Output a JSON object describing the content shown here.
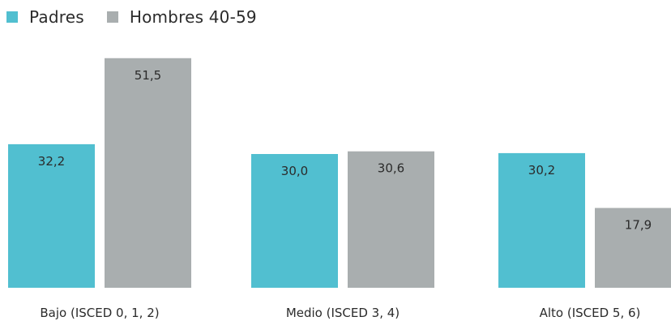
{
  "chart_data": {
    "type": "bar",
    "categories": [
      "Bajo (ISCED 0, 1, 2)",
      "Medio (ISCED 3, 4)",
      "Alto (ISCED 5, 6)"
    ],
    "series": [
      {
        "name": "Padres",
        "values": [
          32.2,
          30.0,
          30.2
        ],
        "labels": [
          "32,2",
          "30,0",
          "30,2"
        ],
        "color": "#51bfd0"
      },
      {
        "name": "Hombres 40-59",
        "values": [
          51.5,
          30.6,
          17.9
        ],
        "labels": [
          "51,5",
          "30,6",
          "17,9"
        ],
        "color": "#a9aeaf"
      }
    ],
    "legend_position": "top-left",
    "grid": false,
    "axes_visible": false,
    "ylim": [
      0,
      55
    ]
  }
}
